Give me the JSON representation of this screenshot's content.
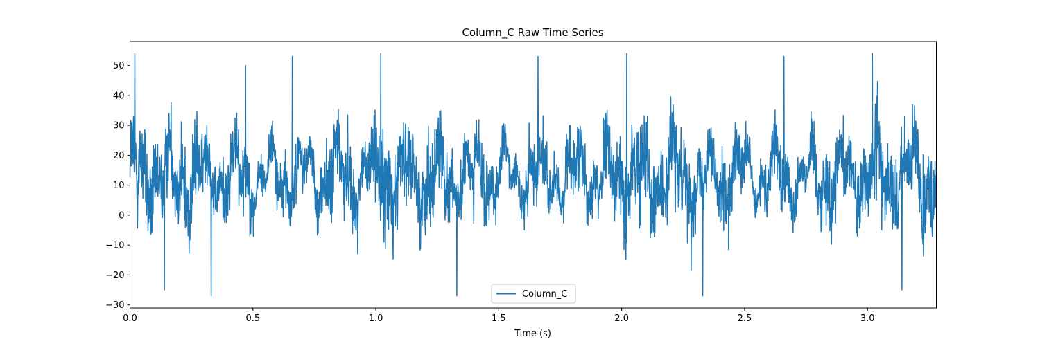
{
  "chart_data": {
    "type": "line",
    "title": "Column_C Raw Time Series",
    "xlabel": "Time (s)",
    "ylabel": "",
    "xlim": [
      0.0,
      3.28
    ],
    "ylim": [
      -31,
      58
    ],
    "x_ticks": [
      0.0,
      0.5,
      1.0,
      1.5,
      2.0,
      2.5,
      3.0
    ],
    "x_tick_labels": [
      "0.0",
      "0.5",
      "1.0",
      "1.5",
      "2.0",
      "2.5",
      "3.0"
    ],
    "y_ticks": [
      -30,
      -20,
      -10,
      0,
      10,
      20,
      30,
      40,
      50
    ],
    "y_tick_labels": [
      "−30",
      "−20",
      "−10",
      "0",
      "10",
      "20",
      "30",
      "40",
      "50"
    ],
    "grid": false,
    "legend_position": "bottom-center",
    "series": [
      {
        "name": "Column_C",
        "color": "#1f77b4",
        "summary": {
          "x_start": 0.0,
          "x_end": 3.28,
          "mean": 13,
          "min": -27,
          "max": 54,
          "periodicity_s": 1.0
        },
        "peaks": [
          {
            "x": 0.02,
            "y": 54
          },
          {
            "x": 0.47,
            "y": 50
          },
          {
            "x": 0.66,
            "y": 53
          },
          {
            "x": 1.02,
            "y": 54
          },
          {
            "x": 1.66,
            "y": 53
          },
          {
            "x": 2.02,
            "y": 54
          },
          {
            "x": 2.66,
            "y": 53
          },
          {
            "x": 3.02,
            "y": 54
          }
        ],
        "troughs": [
          {
            "x": 0.14,
            "y": -25
          },
          {
            "x": 0.33,
            "y": -27
          },
          {
            "x": 1.33,
            "y": -27
          },
          {
            "x": 2.33,
            "y": -27
          },
          {
            "x": 3.14,
            "y": -25
          }
        ]
      }
    ]
  }
}
